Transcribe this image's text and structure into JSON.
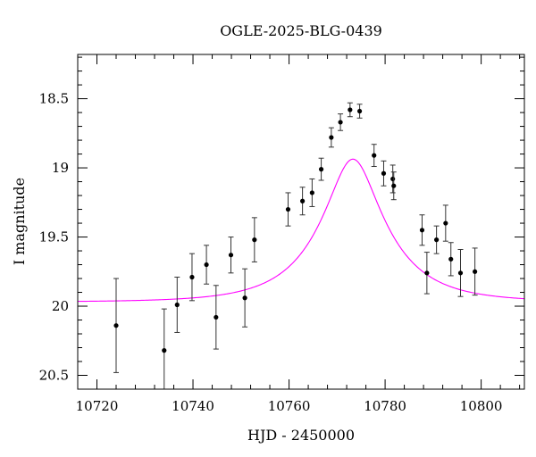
{
  "chart_data": {
    "type": "scatter",
    "title": "OGLE-2025-BLG-0439",
    "xlabel": "HJD - 2450000",
    "ylabel": "I magnitude",
    "xlim": [
      10716,
      10809
    ],
    "ylim": [
      20.6,
      18.18
    ],
    "y_inverted": true,
    "grid": false,
    "x_ticks": [
      10720,
      10740,
      10760,
      10780,
      10800
    ],
    "x_tick_labels": [
      "10720",
      "10740",
      "10760",
      "10780",
      "10800"
    ],
    "y_ticks": [
      18.5,
      19,
      19.5,
      20,
      20.5
    ],
    "y_tick_labels": [
      "18.5",
      "19",
      "19.5",
      "20",
      "20.5"
    ],
    "series": [
      {
        "kind": "points-with-errorbars",
        "color": "#000000",
        "points": [
          {
            "x": 10724.0,
            "y": 20.14,
            "err": 0.34
          },
          {
            "x": 10734.0,
            "y": 20.32,
            "err": 0.3
          },
          {
            "x": 10736.7,
            "y": 19.99,
            "err": 0.2
          },
          {
            "x": 10739.8,
            "y": 19.79,
            "err": 0.17
          },
          {
            "x": 10742.8,
            "y": 19.7,
            "err": 0.14
          },
          {
            "x": 10744.8,
            "y": 20.08,
            "err": 0.23
          },
          {
            "x": 10747.9,
            "y": 19.63,
            "err": 0.13
          },
          {
            "x": 10750.8,
            "y": 19.94,
            "err": 0.21
          },
          {
            "x": 10752.8,
            "y": 19.52,
            "err": 0.16
          },
          {
            "x": 10759.8,
            "y": 19.3,
            "err": 0.12
          },
          {
            "x": 10762.8,
            "y": 19.24,
            "err": 0.1
          },
          {
            "x": 10764.8,
            "y": 19.18,
            "err": 0.1
          },
          {
            "x": 10766.7,
            "y": 19.01,
            "err": 0.08
          },
          {
            "x": 10768.8,
            "y": 18.78,
            "err": 0.07
          },
          {
            "x": 10770.7,
            "y": 18.67,
            "err": 0.06
          },
          {
            "x": 10772.7,
            "y": 18.58,
            "err": 0.05
          },
          {
            "x": 10774.7,
            "y": 18.59,
            "err": 0.05
          },
          {
            "x": 10777.7,
            "y": 18.91,
            "err": 0.08
          },
          {
            "x": 10779.7,
            "y": 19.04,
            "err": 0.09
          },
          {
            "x": 10781.6,
            "y": 19.08,
            "err": 0.1
          },
          {
            "x": 10781.8,
            "y": 19.13,
            "err": 0.1
          },
          {
            "x": 10787.7,
            "y": 19.45,
            "err": 0.11
          },
          {
            "x": 10788.7,
            "y": 19.76,
            "err": 0.15
          },
          {
            "x": 10790.7,
            "y": 19.52,
            "err": 0.1
          },
          {
            "x": 10792.6,
            "y": 19.4,
            "err": 0.13
          },
          {
            "x": 10793.7,
            "y": 19.66,
            "err": 0.12
          },
          {
            "x": 10795.7,
            "y": 19.76,
            "err": 0.17
          },
          {
            "x": 10798.7,
            "y": 19.75,
            "err": 0.17
          }
        ]
      },
      {
        "kind": "model-curve",
        "color": "#ff00ff",
        "model": {
          "t0": 10773.3,
          "tE": 14.0,
          "u0": 0.35,
          "baseline_mag": 19.97,
          "blend_fraction": 0.8
        }
      }
    ]
  }
}
